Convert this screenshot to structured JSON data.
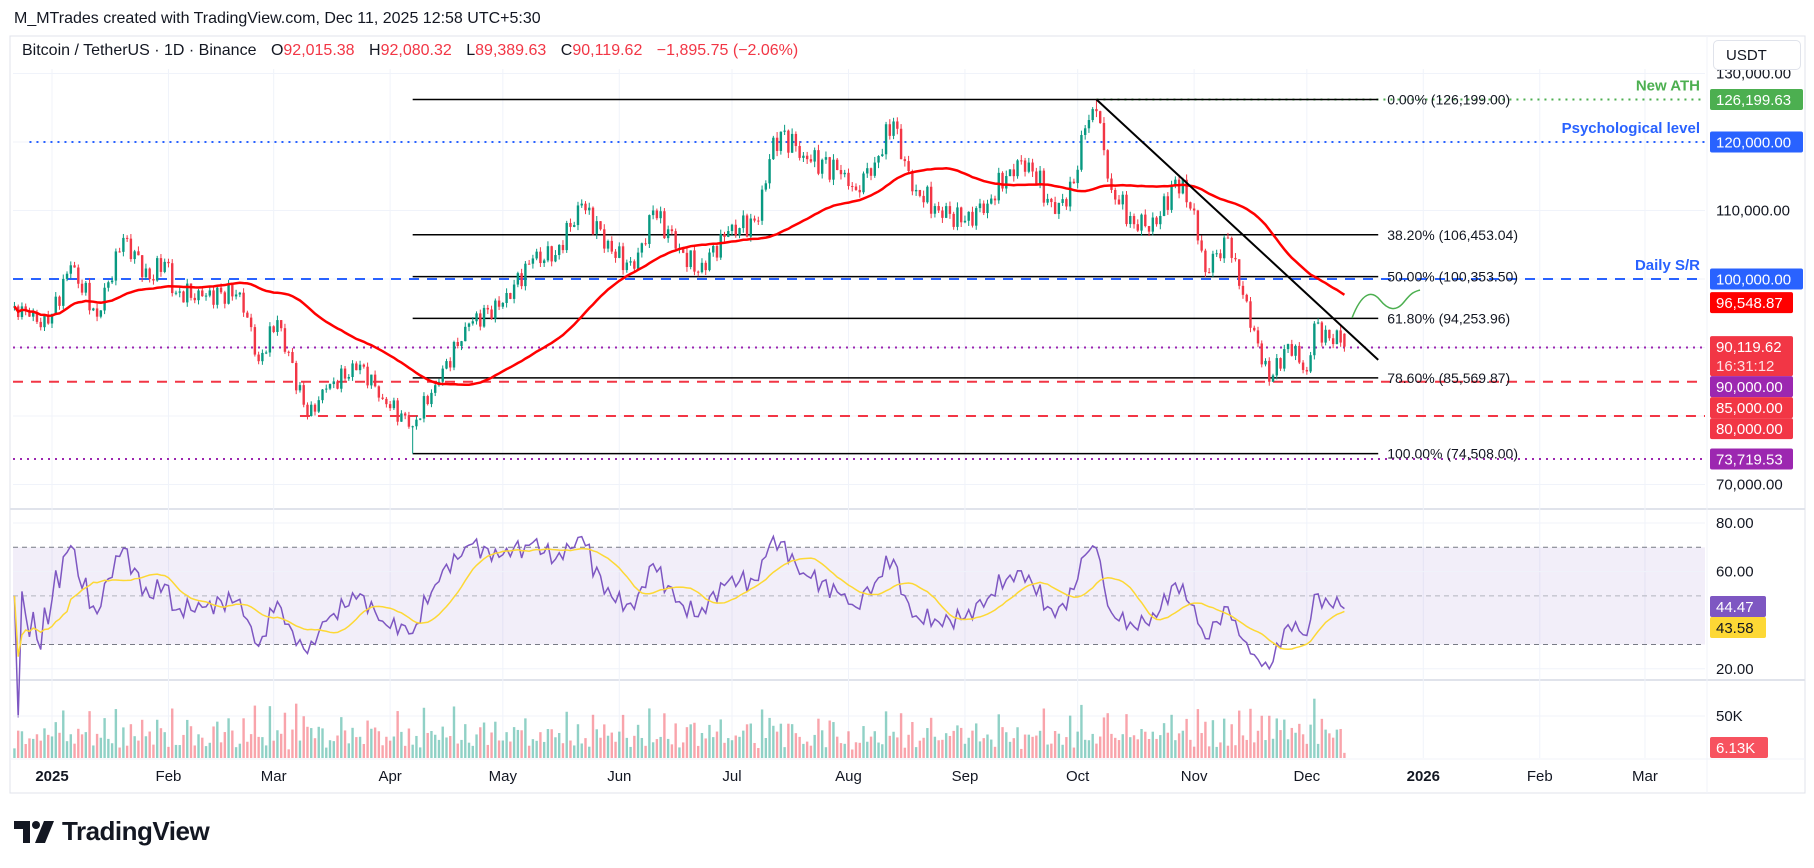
{
  "header": {
    "credit": "M_MTrades created with TradingView.com, Dec 11, 2025 12:58 UTC+5:30",
    "symbol": "Bitcoin / TetherUS · 1D · Binance",
    "open_label": "O",
    "open": "92,015.38",
    "high_label": "H",
    "high": "92,080.32",
    "low_label": "L",
    "low": "89,389.63",
    "close_label": "C",
    "close": "90,119.62",
    "change": "−1,895.75 (−2.06%)",
    "currency_button": "USDT"
  },
  "branding": {
    "logo_text": "TradingView"
  },
  "colors": {
    "up": "#089981",
    "down": "#f23645",
    "sma": "#ff0000",
    "rsi": "#7e57c2",
    "rsi_ma": "#fdd835",
    "ath": "#4caf50",
    "level_blue": "#2962ff",
    "level_purple": "#9c27b0"
  },
  "chart_data": {
    "type": "candlestick",
    "symbol": "BTCUSDT",
    "interval": "1D",
    "y_scale": "linear",
    "ylim": [
      68000,
      131000
    ],
    "grid": true,
    "key_closes": [
      [
        "2024-12-22",
        96000
      ],
      [
        "2024-12-26",
        94500
      ],
      [
        "2024-12-31",
        93500
      ],
      [
        "2025-01-06",
        102000
      ],
      [
        "2025-01-13",
        94500
      ],
      [
        "2025-01-20",
        106000
      ],
      [
        "2025-01-27",
        100000
      ],
      [
        "2025-01-31",
        102500
      ],
      [
        "2025-02-03",
        98000
      ],
      [
        "2025-02-10",
        97500
      ],
      [
        "2025-02-20",
        98000
      ],
      [
        "2025-02-25",
        88000
      ],
      [
        "2025-03-02",
        94000
      ],
      [
        "2025-03-10",
        80000
      ],
      [
        "2025-03-15",
        84000
      ],
      [
        "2025-03-24",
        87500
      ],
      [
        "2025-03-30",
        82500
      ],
      [
        "2025-04-07",
        78500
      ],
      [
        "2025-04-13",
        84500
      ],
      [
        "2025-04-22",
        93500
      ],
      [
        "2025-05-01",
        96500
      ],
      [
        "2025-05-09",
        103000
      ],
      [
        "2025-05-15",
        103500
      ],
      [
        "2025-05-22",
        111000
      ],
      [
        "2025-05-30",
        104000
      ],
      [
        "2025-06-05",
        101500
      ],
      [
        "2025-06-10",
        110000
      ],
      [
        "2025-06-17",
        104500
      ],
      [
        "2025-06-22",
        101000
      ],
      [
        "2025-06-30",
        107000
      ],
      [
        "2025-07-08",
        108500
      ],
      [
        "2025-07-11",
        117500
      ],
      [
        "2025-07-14",
        121500
      ],
      [
        "2025-07-20",
        118000
      ],
      [
        "2025-07-31",
        115500
      ],
      [
        "2025-08-03",
        113000
      ],
      [
        "2025-08-08",
        117000
      ],
      [
        "2025-08-13",
        123000
      ],
      [
        "2025-08-15",
        117500
      ],
      [
        "2025-08-19",
        113000
      ],
      [
        "2025-08-25",
        110000
      ],
      [
        "2025-09-01",
        108500
      ],
      [
        "2025-09-07",
        111000
      ],
      [
        "2025-09-13",
        116000
      ],
      [
        "2025-09-18",
        117000
      ],
      [
        "2025-09-25",
        109500
      ],
      [
        "2025-09-30",
        114000
      ],
      [
        "2025-10-03",
        122000
      ],
      [
        "2025-10-06",
        124500
      ],
      [
        "2025-10-10",
        113000
      ],
      [
        "2025-10-16",
        108000
      ],
      [
        "2025-10-22",
        108000
      ],
      [
        "2025-10-27",
        114500
      ],
      [
        "2025-11-01",
        110000
      ],
      [
        "2025-11-04",
        101000
      ],
      [
        "2025-11-10",
        106000
      ],
      [
        "2025-11-13",
        99000
      ],
      [
        "2025-11-17",
        92500
      ],
      [
        "2025-11-21",
        85000
      ],
      [
        "2025-11-26",
        90500
      ],
      [
        "2025-12-01",
        86500
      ],
      [
        "2025-12-03",
        93500
      ],
      [
        "2025-12-08",
        90500
      ],
      [
        "2025-12-09",
        92500
      ],
      [
        "2025-12-11",
        90119.62
      ]
    ],
    "last_candle": {
      "date": "2025-12-11",
      "open": 92015.38,
      "high": 92080.32,
      "low": 89389.63,
      "close": 90119.62
    },
    "ath": {
      "date": "2025-10-06",
      "high": 126199.63
    },
    "cycle_low": {
      "date": "2025-04-07",
      "low": 74508
    },
    "sma_value": 96548.87,
    "x_ticks": [
      [
        "2025",
        "2025-01-01",
        true
      ],
      [
        "Feb",
        "2025-02-01",
        false
      ],
      [
        "Mar",
        "2025-03-01",
        false
      ],
      [
        "Apr",
        "2025-04-01",
        false
      ],
      [
        "May",
        "2025-05-01",
        false
      ],
      [
        "Jun",
        "2025-06-01",
        false
      ],
      [
        "Jul",
        "2025-07-01",
        false
      ],
      [
        "Aug",
        "2025-08-01",
        false
      ],
      [
        "Sep",
        "2025-09-01",
        false
      ],
      [
        "Oct",
        "2025-10-01",
        false
      ],
      [
        "Nov",
        "2025-11-01",
        false
      ],
      [
        "Dec",
        "2025-12-01",
        false
      ],
      [
        "2026",
        "2026-01-01",
        true
      ],
      [
        "Feb",
        "2026-02-01",
        false
      ],
      [
        "Mar",
        "2026-03-01",
        false
      ]
    ],
    "y_ticks": [
      [
        "130,000.00",
        130000
      ],
      [
        "110,000.00",
        110000
      ],
      [
        "70,000.00",
        70000
      ]
    ],
    "fibonacci": {
      "from_date": "2025-04-07",
      "to_date": "2025-12-20",
      "levels": [
        {
          "label": "0.00% (126,199.00)",
          "price": 126199
        },
        {
          "label": "38.20% (106,453.04)",
          "price": 106453.04
        },
        {
          "label": "50.00% (100,353.50)",
          "price": 100353.5
        },
        {
          "label": "61.80% (94,253.96)",
          "price": 94253.96
        },
        {
          "label": "78.60% (85,569.87)",
          "price": 85569.87
        },
        {
          "label": "100.00% (74,508.00)",
          "price": 74508
        }
      ]
    },
    "horizontal_levels": [
      {
        "price": 126199.63,
        "style": "dotted",
        "color": "#4caf50",
        "from_date": "2025-10-06",
        "note": "New ATH"
      },
      {
        "price": 120000,
        "style": "dotted",
        "color": "#2962ff",
        "from_date": "2024-12-26",
        "note": "Psychological level"
      },
      {
        "price": 100000,
        "style": "dashed",
        "color": "#2962ff",
        "from_date": "2024-12-12",
        "note": "Daily S/R"
      },
      {
        "price": 90000,
        "style": "dotted",
        "color": "#9c27b0",
        "from_date": "2024-12-12",
        "note": ""
      },
      {
        "price": 85000,
        "style": "dashed",
        "color": "#f23645",
        "from_date": "2024-12-12",
        "note": ""
      },
      {
        "price": 80000,
        "style": "dashed",
        "color": "#f23645",
        "from_date": "2025-03-08",
        "note": ""
      },
      {
        "price": 73719.53,
        "style": "dotted",
        "color": "#9c27b0",
        "from_date": "2024-12-12",
        "note": ""
      }
    ],
    "trendline": {
      "from": [
        "2025-10-06",
        126199
      ],
      "to": [
        "2025-12-20",
        88200
      ]
    },
    "price_axis_labels": [
      {
        "text": "126,199.63",
        "price": 126199.63,
        "bg": "#4caf50",
        "fg": "#ffffff"
      },
      {
        "text": "120,000.00",
        "price": 120000,
        "bg": "#2962ff",
        "fg": "#ffffff"
      },
      {
        "text": "100,000.00",
        "price": 100000,
        "bg": "#2962ff",
        "fg": "#ffffff"
      },
      {
        "text": "96,548.87",
        "price": 96548.87,
        "bg": "#ff0000",
        "fg": "#ffffff"
      },
      {
        "text": "90,119.62",
        "sub": "16:31:12",
        "price": 90119.62,
        "bg": "#f23645",
        "fg": "#ffffff"
      },
      {
        "text": "90,000.00",
        "price": 90000,
        "bg": "#9c27b0",
        "fg": "#ffffff"
      },
      {
        "text": "85,000.00",
        "price": 85000,
        "bg": "#f23645",
        "fg": "#ffffff"
      },
      {
        "text": "80,000.00",
        "price": 80000,
        "bg": "#f23645",
        "fg": "#ffffff"
      },
      {
        "text": "73,719.53",
        "price": 73719.53,
        "bg": "#9c27b0",
        "fg": "#ffffff"
      }
    ],
    "rsi": {
      "period": 14,
      "y_ticks": [
        [
          "80.00",
          80
        ],
        [
          "60.00",
          60
        ],
        [
          "20.00",
          20
        ]
      ],
      "band": [
        30,
        70
      ],
      "mid": 50,
      "value_label": "44.47",
      "ma_label": "43.58"
    },
    "volume": {
      "y_ticks": [
        [
          "50K",
          50000
        ]
      ],
      "last_label": "6.13K"
    }
  }
}
